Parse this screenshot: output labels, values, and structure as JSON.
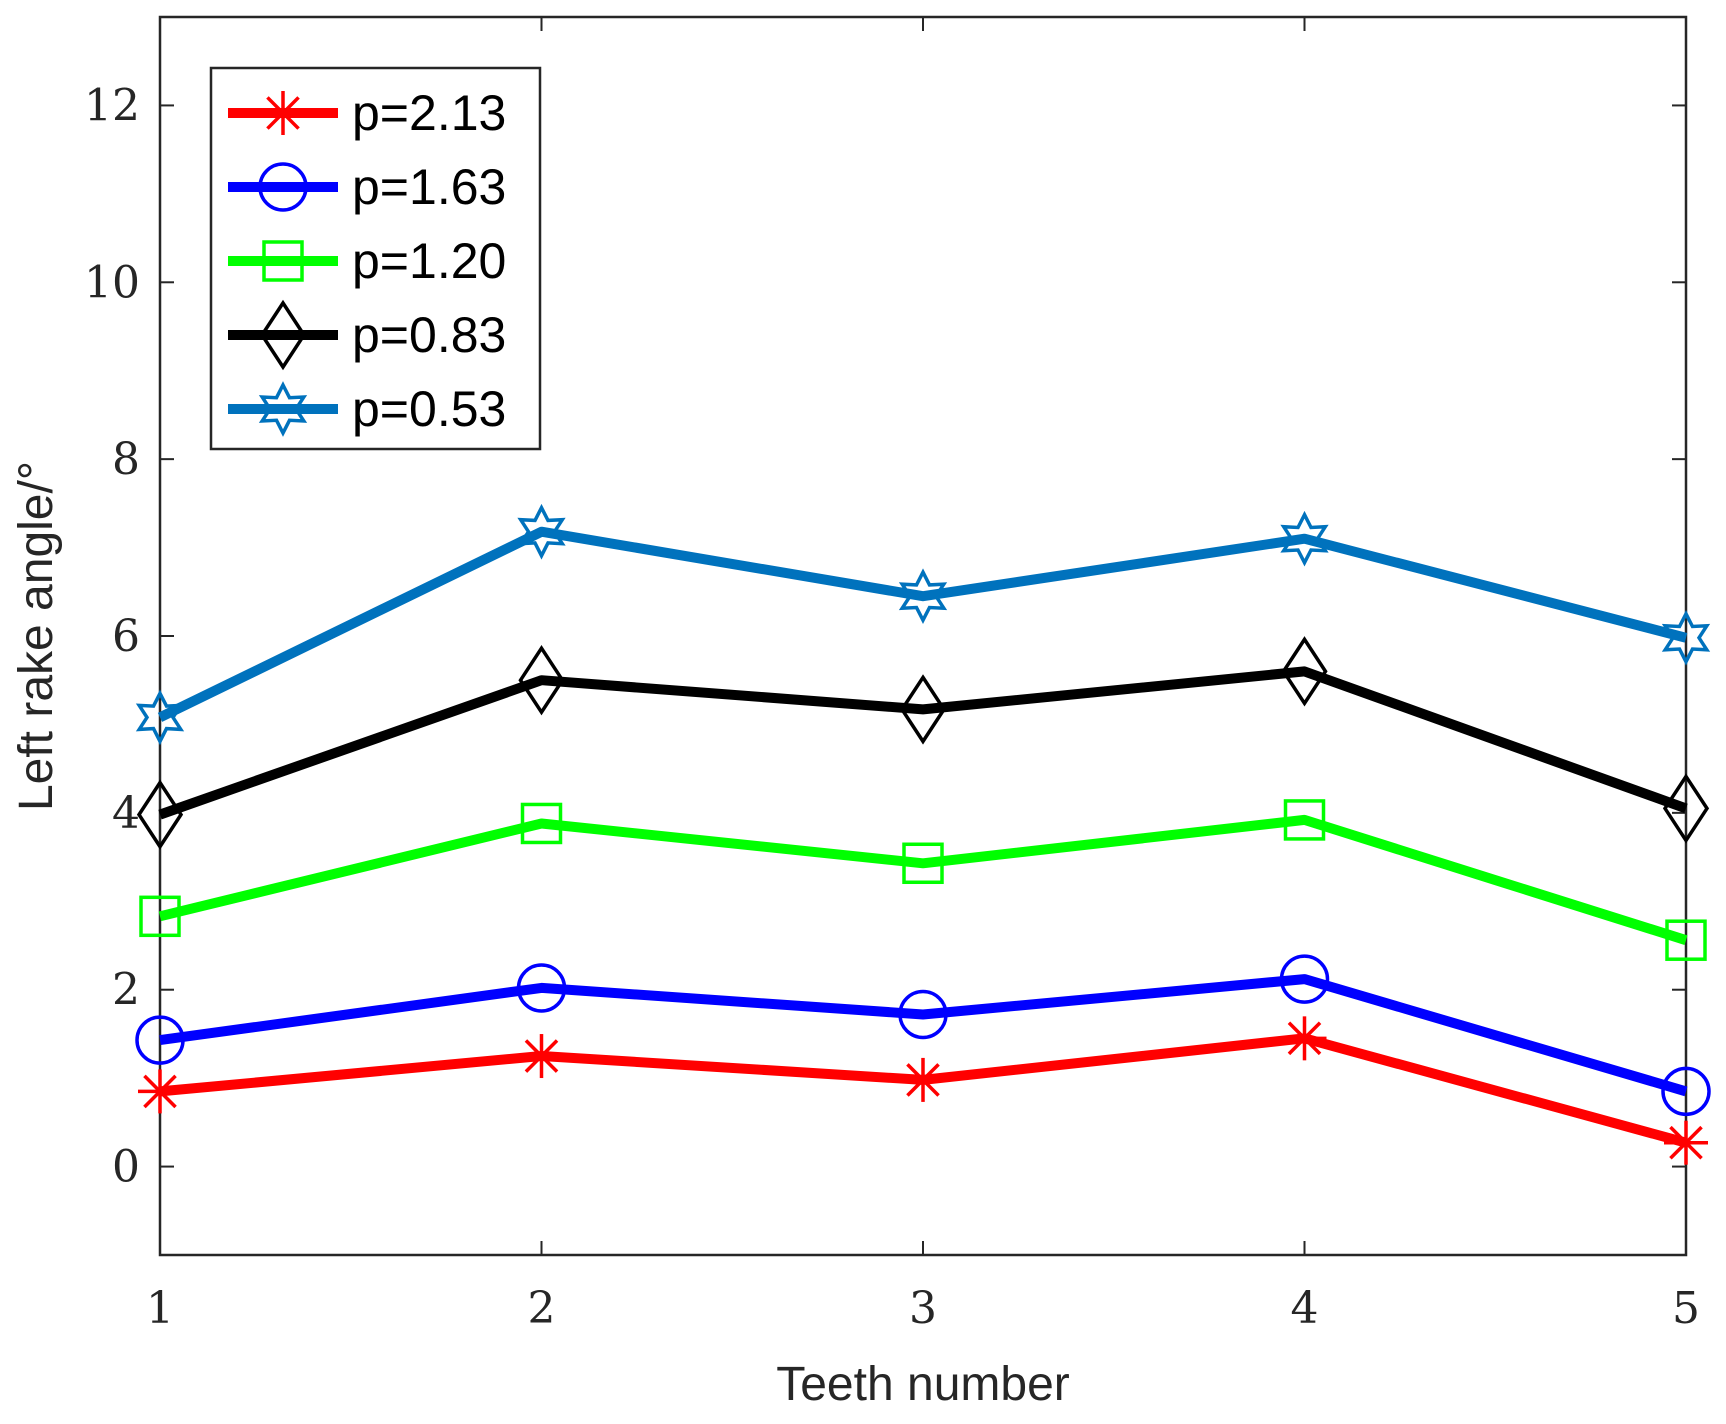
{
  "chart_data": {
    "type": "line",
    "title": "",
    "xlabel": "Teeth number",
    "ylabel": "Left rake angle/°",
    "x": [
      1,
      2,
      3,
      4,
      5
    ],
    "xlim": [
      1,
      5
    ],
    "ylim": [
      -1,
      13
    ],
    "xticks": [
      "1",
      "2",
      "3",
      "4",
      "5"
    ],
    "yticks": [
      "0",
      "2",
      "4",
      "6",
      "8",
      "10",
      "12"
    ],
    "grid": false,
    "legend_position": "top-left",
    "series": [
      {
        "name": "p=2.13",
        "color": "#ff0000",
        "marker": "asterisk",
        "values": [
          0.85,
          1.25,
          0.98,
          1.45,
          0.27
        ]
      },
      {
        "name": "p=1.63",
        "color": "#0000ff",
        "marker": "circle",
        "values": [
          1.43,
          2.02,
          1.72,
          2.12,
          0.85
        ]
      },
      {
        "name": "p=1.20",
        "color": "#00ff00",
        "marker": "square",
        "values": [
          2.83,
          3.88,
          3.43,
          3.92,
          2.56
        ]
      },
      {
        "name": "p=0.83",
        "color": "#000000",
        "marker": "diamond",
        "values": [
          3.98,
          5.5,
          5.17,
          5.6,
          4.05
        ]
      },
      {
        "name": "p=0.53",
        "color": "#0072bd",
        "marker": "hexagram",
        "values": [
          5.08,
          7.18,
          6.45,
          7.1,
          5.98
        ]
      }
    ]
  }
}
